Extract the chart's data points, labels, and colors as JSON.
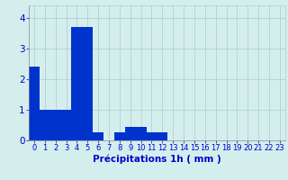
{
  "values": [
    2.4,
    1.0,
    1.0,
    1.0,
    3.7,
    3.7,
    0.25,
    0.0,
    0.25,
    0.45,
    0.45,
    0.25,
    0.25,
    0.0,
    0.0,
    0.0,
    0.0,
    0.0,
    0.0,
    0.0,
    0.0,
    0.0,
    0.0,
    0.0
  ],
  "bar_color": "#0033cc",
  "background_color": "#d4eeed",
  "grid_color": "#aacccc",
  "xlabel": "Précipitations 1h ( mm )",
  "xlabel_color": "#0000cc",
  "tick_color": "#0000cc",
  "ylim": [
    0,
    4.4
  ],
  "yticks": [
    0,
    1,
    2,
    3,
    4
  ],
  "xlim": [
    -0.5,
    23.5
  ],
  "xlabel_fontsize": 7.5,
  "tick_fontsize": 6,
  "ytick_fontsize": 7.5
}
